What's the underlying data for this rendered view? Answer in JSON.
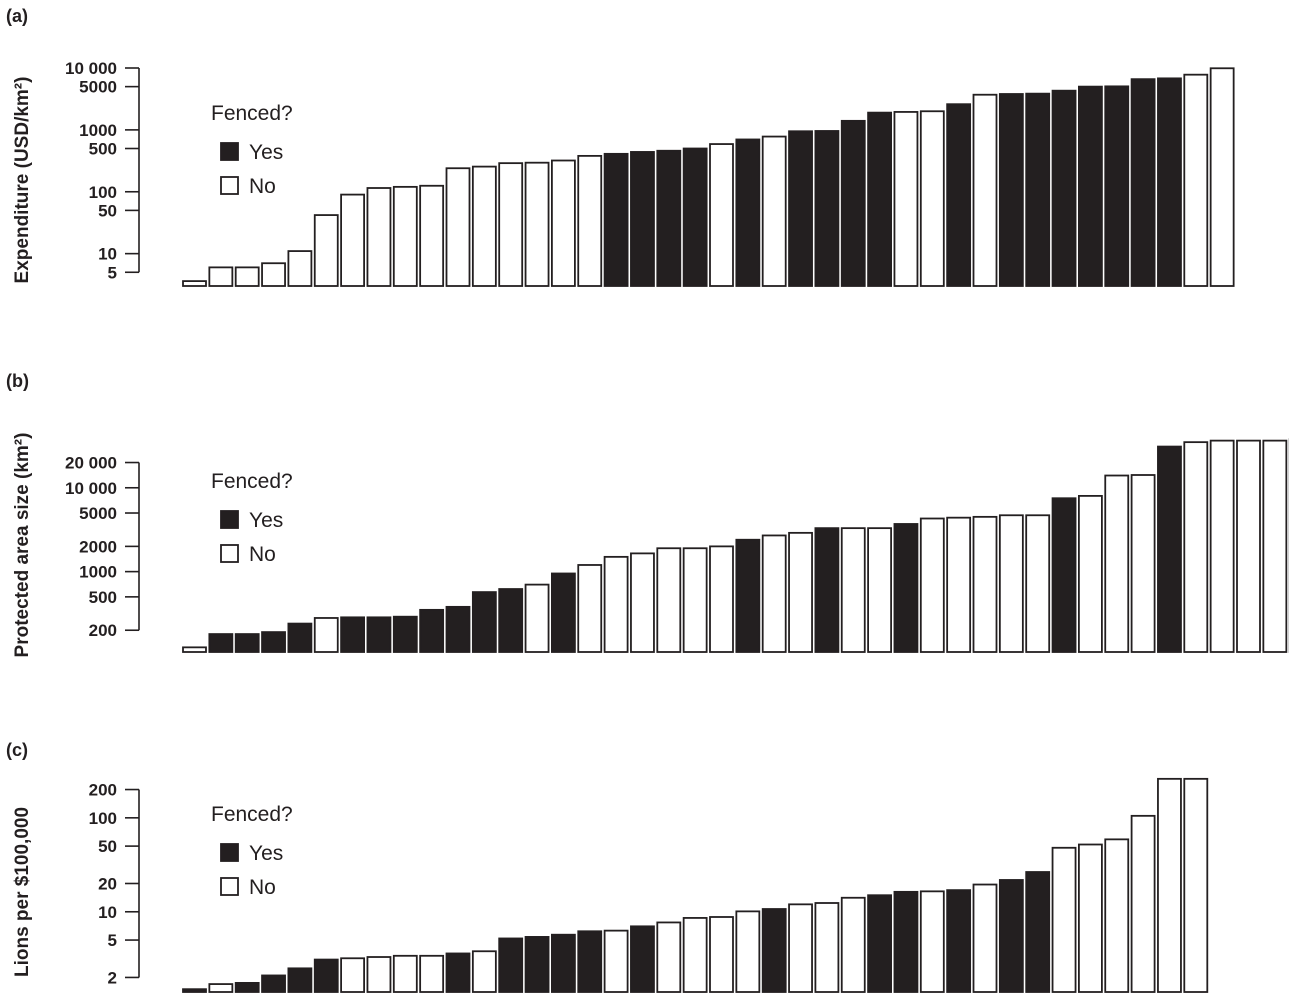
{
  "colors": {
    "fenced_yes": "#231f20",
    "fenced_no": "#ffffff"
  },
  "chart_data": [
    {
      "id": "a",
      "type": "bar",
      "panel_label": "(a)",
      "ylabel": "Expenditure (USD/km²)",
      "yscale": "log",
      "ylim": [
        3,
        10000
      ],
      "yticks": [
        5,
        10,
        50,
        100,
        500,
        1000,
        5000,
        10000
      ],
      "ytick_labels": [
        "5",
        "10",
        "50",
        "100",
        "500",
        "1000",
        "5000",
        "10 000"
      ],
      "legend": {
        "title": "Fenced?",
        "entries": [
          "Yes",
          "No"
        ],
        "position": "top-left"
      },
      "values": [
        3.6,
        6,
        6,
        7,
        11,
        42,
        90,
        115,
        120,
        125,
        240,
        255,
        290,
        295,
        320,
        380,
        410,
        440,
        460,
        500,
        590,
        700,
        780,
        950,
        960,
        1400,
        1900,
        1950,
        2000,
        2600,
        3700,
        3800,
        3850,
        4300,
        5000,
        5050,
        6600,
        6800,
        7800,
        9900
      ],
      "fenced": [
        false,
        false,
        false,
        false,
        false,
        false,
        false,
        false,
        false,
        false,
        false,
        false,
        false,
        false,
        false,
        false,
        true,
        true,
        true,
        true,
        false,
        true,
        false,
        true,
        true,
        true,
        true,
        false,
        false,
        true,
        false,
        true,
        true,
        true,
        true,
        true,
        true,
        true,
        false,
        false
      ]
    },
    {
      "id": "b",
      "type": "bar",
      "panel_label": "(b)",
      "ylabel": "Protected area size (km²)",
      "yscale": "log",
      "ylim": [
        110,
        45000
      ],
      "yticks": [
        200,
        500,
        1000,
        2000,
        5000,
        10000,
        20000
      ],
      "ytick_labels": [
        "200",
        "500",
        "1000",
        "2000",
        "5000",
        "10 000",
        "20 000"
      ],
      "legend": {
        "title": "Fenced?",
        "entries": [
          "Yes",
          "No"
        ],
        "position": "top-left"
      },
      "values": [
        125,
        180,
        180,
        190,
        240,
        280,
        285,
        285,
        290,
        350,
        380,
        570,
        620,
        700,
        950,
        1200,
        1500,
        1650,
        1900,
        1900,
        2000,
        2400,
        2700,
        2900,
        3300,
        3300,
        3300,
        3700,
        4300,
        4400,
        4500,
        4700,
        4700,
        7500,
        8000,
        14000,
        14200,
        31000,
        35000,
        36500,
        36500,
        36500,
        38000
      ],
      "fenced": [
        false,
        true,
        true,
        true,
        true,
        false,
        true,
        true,
        true,
        true,
        true,
        true,
        true,
        false,
        true,
        false,
        false,
        false,
        false,
        false,
        false,
        true,
        false,
        false,
        true,
        false,
        false,
        true,
        false,
        false,
        false,
        false,
        false,
        true,
        false,
        false,
        false,
        true,
        false,
        false,
        false,
        false,
        false
      ]
    },
    {
      "id": "c",
      "type": "bar",
      "panel_label": "(c)",
      "ylabel": "Lions per $100,000",
      "yscale": "log",
      "ylim": [
        1.4,
        300
      ],
      "yticks": [
        2,
        5,
        10,
        20,
        50,
        100,
        200
      ],
      "ytick_labels": [
        "2",
        "5",
        "10",
        "20",
        "50",
        "100",
        "200"
      ],
      "legend": {
        "title": "Fenced?",
        "entries": [
          "Yes",
          "No"
        ],
        "position": "top-left"
      },
      "values": [
        1.5,
        1.7,
        1.75,
        2.1,
        2.5,
        3.1,
        3.2,
        3.3,
        3.4,
        3.4,
        3.6,
        3.8,
        5.2,
        5.4,
        5.7,
        6.2,
        6.3,
        7.0,
        7.7,
        8.6,
        8.8,
        10.1,
        10.7,
        12.0,
        12.4,
        14.1,
        15.0,
        16.3,
        16.5,
        17.0,
        19.5,
        21.8,
        26.5,
        48,
        52,
        59,
        105,
        260,
        260
      ],
      "fenced": [
        true,
        false,
        true,
        true,
        true,
        true,
        false,
        false,
        false,
        false,
        true,
        false,
        true,
        true,
        true,
        true,
        false,
        true,
        false,
        false,
        false,
        false,
        true,
        false,
        false,
        false,
        true,
        true,
        false,
        true,
        false,
        true,
        true,
        false,
        false,
        false,
        false,
        false,
        false
      ]
    }
  ]
}
